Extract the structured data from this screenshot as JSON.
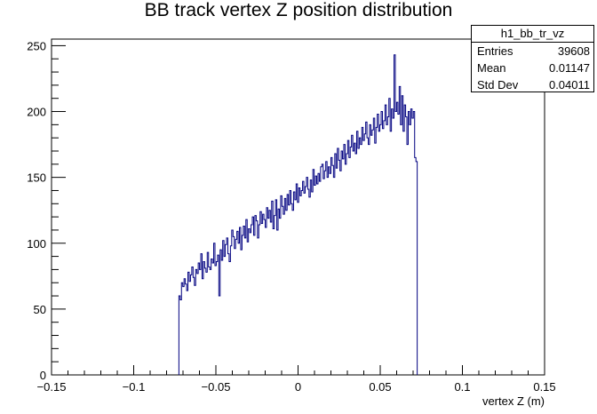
{
  "chart_data": {
    "type": "histogram",
    "title": "BB track vertex Z position distribution",
    "xlabel": "vertex Z (m)",
    "ylabel": "",
    "xlim": [
      -0.15,
      0.15
    ],
    "ylim": [
      0,
      255
    ],
    "x_ticks": [
      "−0.15",
      "−0.1",
      "−0.05",
      "0",
      "0.05",
      "0.1",
      "0.15"
    ],
    "x_tick_values": [
      -0.15,
      -0.1,
      -0.05,
      0,
      0.05,
      0.1,
      0.15
    ],
    "y_ticks": [
      "0",
      "50",
      "100",
      "150",
      "200",
      "250"
    ],
    "y_tick_values": [
      0,
      50,
      100,
      150,
      200,
      250
    ],
    "line_color": "#000080",
    "series": [
      {
        "bin_edges_range": [
          -0.0725,
          0.0725
        ],
        "values": [
          60,
          57,
          70,
          67,
          73,
          69,
          64,
          78,
          71,
          76,
          82,
          74,
          68,
          80,
          77,
          85,
          80,
          92,
          73,
          86,
          81,
          78,
          93,
          82,
          80,
          88,
          85,
          100,
          83,
          86,
          91,
          60,
          95,
          87,
          102,
          90,
          99,
          104,
          92,
          86,
          98,
          110,
          105,
          96,
          103,
          109,
          100,
          112,
          95,
          106,
          113,
          104,
          118,
          101,
          111,
          108,
          114,
          120,
          106,
          121,
          117,
          104,
          114,
          124,
          115,
          122,
          118,
          112,
          127,
          119,
          125,
          116,
          132,
          111,
          121,
          133,
          110,
          126,
          119,
          136,
          128,
          122,
          134,
          125,
          137,
          129,
          140,
          130,
          125,
          139,
          133,
          145,
          131,
          142,
          136,
          140,
          147,
          138,
          143,
          150,
          141,
          135,
          148,
          139,
          156,
          144,
          151,
          145,
          153,
          147,
          158,
          160,
          149,
          155,
          162,
          150,
          158,
          153,
          165,
          159,
          150,
          168,
          157,
          172,
          163,
          155,
          170,
          164,
          175,
          160,
          168,
          178,
          165,
          173,
          182,
          170,
          176,
          168,
          185,
          172,
          180,
          175,
          188,
          178,
          183,
          192,
          180,
          175,
          190,
          182,
          186,
          195,
          176,
          188,
          198,
          185,
          190,
          200,
          187,
          193,
          205,
          190,
          196,
          210,
          185,
          202,
          195,
          243,
          200,
          207,
          198,
          219,
          190,
          212,
          185,
          205,
          196,
          175,
          200,
          190,
          202,
          195,
          200,
          165,
          162
        ]
      }
    ],
    "stats": {
      "name": "h1_bb_tr_vz",
      "rows": [
        {
          "label": "Entries",
          "value": "39608"
        },
        {
          "label": "Mean",
          "value": "0.01147"
        },
        {
          "label": "Std Dev",
          "value": "0.04011"
        }
      ]
    }
  }
}
